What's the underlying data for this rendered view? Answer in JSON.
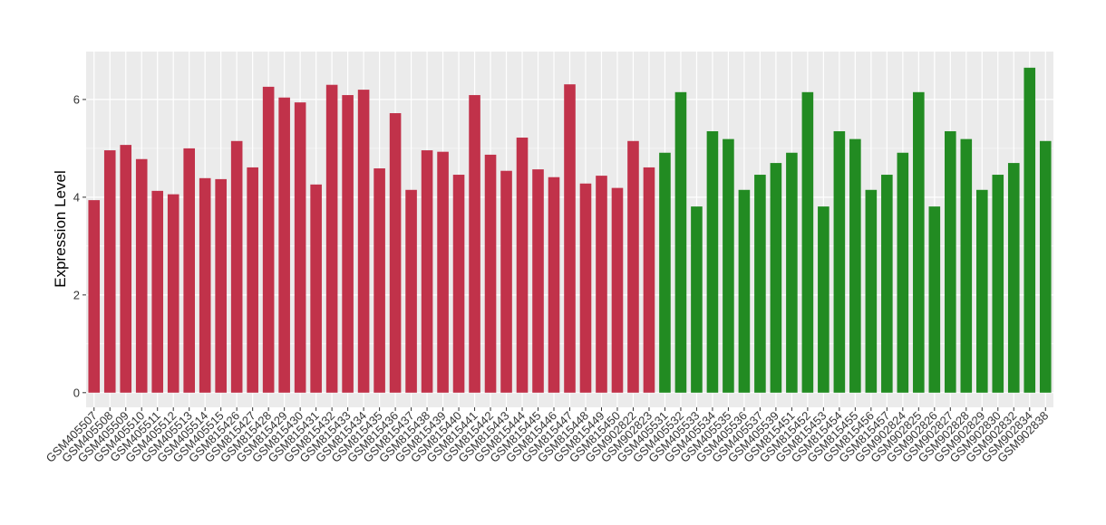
{
  "chart_data": {
    "type": "bar",
    "y_label": "Expression Level",
    "categories": [
      "GSM405507",
      "GSM405508",
      "GSM405509",
      "GSM405510",
      "GSM405511",
      "GSM405512",
      "GSM405513",
      "GSM405514",
      "GSM405515",
      "GSM815426",
      "GSM815427",
      "GSM815428",
      "GSM815429",
      "GSM815430",
      "GSM815431",
      "GSM815432",
      "GSM815433",
      "GSM815434",
      "GSM815435",
      "GSM815436",
      "GSM815437",
      "GSM815438",
      "GSM815439",
      "GSM815440",
      "GSM815441",
      "GSM815442",
      "GSM815443",
      "GSM815444",
      "GSM815445",
      "GSM815446",
      "GSM815447",
      "GSM815448",
      "GSM815449",
      "GSM815450",
      "GSM902822",
      "GSM902823",
      "GSM405531",
      "GSM405532",
      "GSM405533",
      "GSM405534",
      "GSM405535",
      "GSM405536",
      "GSM405537",
      "GSM405539",
      "GSM815451",
      "GSM815452",
      "GSM815453",
      "GSM815454",
      "GSM815455",
      "GSM815456",
      "GSM815457",
      "GSM902824",
      "GSM902825",
      "GSM902826",
      "GSM902827",
      "GSM902828",
      "GSM902829",
      "GSM902830",
      "GSM902832",
      "GSM902834",
      "GSM902838"
    ],
    "values": [
      3.94,
      4.96,
      5.07,
      4.78,
      4.13,
      4.06,
      5.0,
      4.39,
      4.37,
      5.15,
      4.61,
      6.26,
      6.04,
      5.94,
      4.26,
      6.3,
      6.09,
      6.2,
      4.59,
      5.72,
      4.15,
      4.96,
      4.93,
      4.46,
      6.09,
      4.87,
      4.54,
      5.22,
      4.57,
      4.41,
      6.31,
      4.28,
      4.44,
      4.19,
      5.15,
      4.61,
      4.91,
      6.15,
      3.81,
      5.35,
      5.19,
      4.15,
      4.46,
      4.7,
      4.91,
      6.15,
      3.81,
      5.35,
      5.19,
      4.15,
      4.46,
      4.91,
      6.15,
      3.81,
      5.35,
      5.19,
      4.15,
      4.46,
      4.7,
      6.65,
      5.15
    ],
    "colors": [
      "#c1324a",
      "#c1324a",
      "#c1324a",
      "#c1324a",
      "#c1324a",
      "#c1324a",
      "#c1324a",
      "#c1324a",
      "#c1324a",
      "#c1324a",
      "#c1324a",
      "#c1324a",
      "#c1324a",
      "#c1324a",
      "#c1324a",
      "#c1324a",
      "#c1324a",
      "#c1324a",
      "#c1324a",
      "#c1324a",
      "#c1324a",
      "#c1324a",
      "#c1324a",
      "#c1324a",
      "#c1324a",
      "#c1324a",
      "#c1324a",
      "#c1324a",
      "#c1324a",
      "#c1324a",
      "#c1324a",
      "#c1324a",
      "#c1324a",
      "#c1324a",
      "#c1324a",
      "#c1324a",
      "#228b22",
      "#228b22",
      "#228b22",
      "#228b22",
      "#228b22",
      "#228b22",
      "#228b22",
      "#228b22",
      "#228b22",
      "#228b22",
      "#228b22",
      "#228b22",
      "#228b22",
      "#228b22",
      "#228b22",
      "#228b22",
      "#228b22",
      "#228b22",
      "#228b22",
      "#228b22",
      "#228b22",
      "#228b22",
      "#228b22",
      "#228b22",
      "#228b22"
    ],
    "ylim": [
      -0.3,
      6.98
    ],
    "yticks": [
      0,
      2,
      4,
      6
    ],
    "grid": true
  }
}
